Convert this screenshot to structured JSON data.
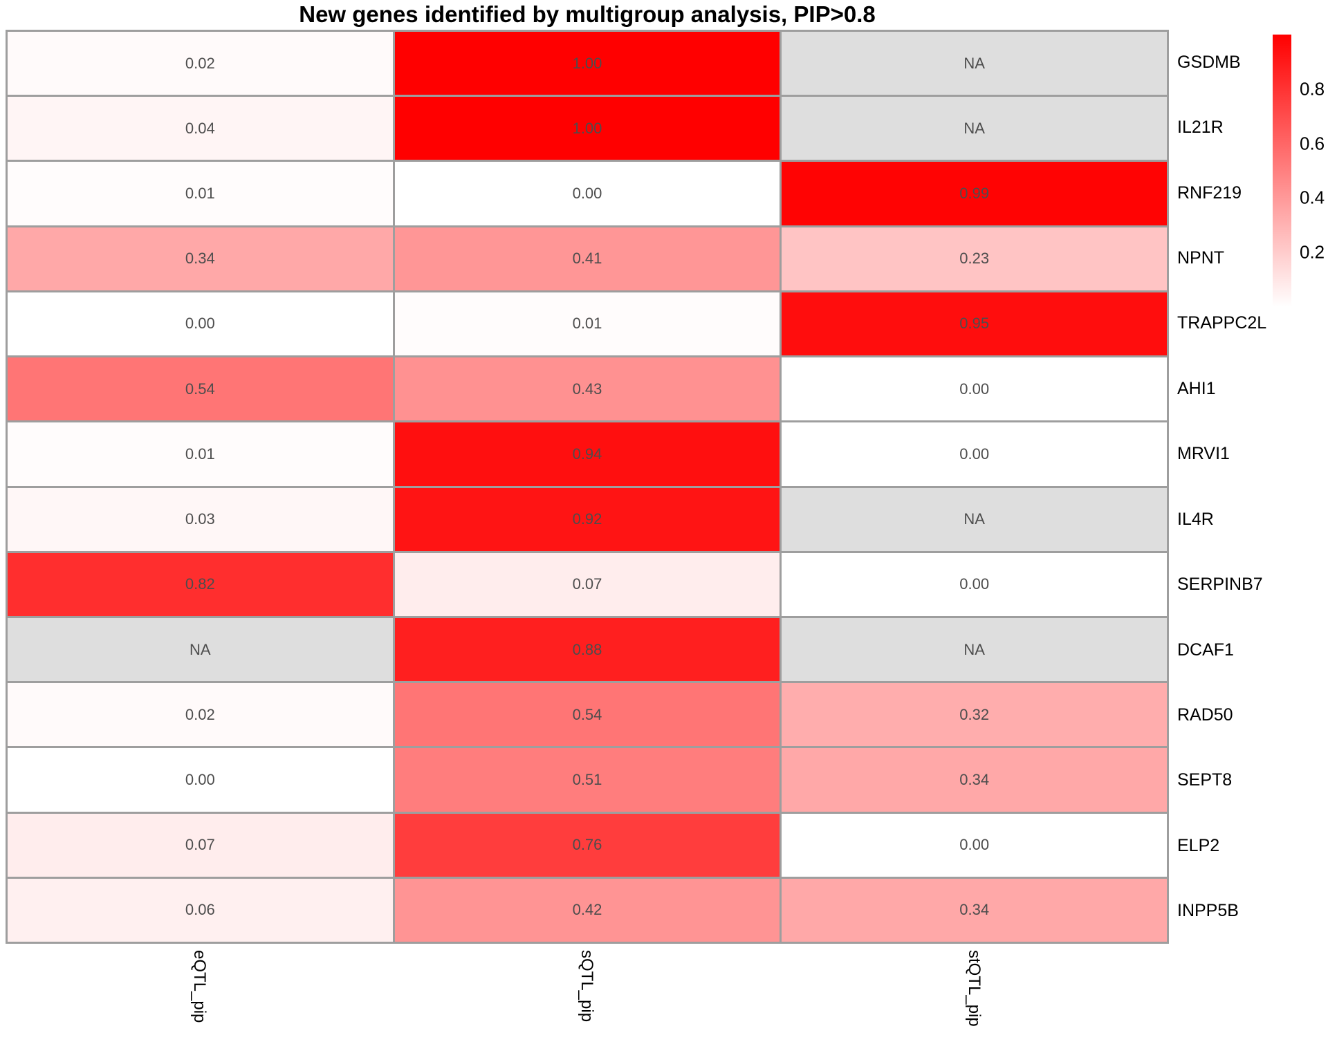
{
  "title": "New genes identified by multigroup analysis, PIP>0.8",
  "chart_data": {
    "type": "heatmap",
    "columns": [
      "eQTL_pip",
      "sQTL_pip",
      "stQTL_pip"
    ],
    "rows": [
      "GSDMB",
      "IL21R",
      "RNF219",
      "NPNT",
      "TRAPPC2L",
      "AHI1",
      "MRVI1",
      "IL4R",
      "SERPINB7",
      "DCAF1",
      "RAD50",
      "SEPT8",
      "ELP2",
      "INPP5B"
    ],
    "values": [
      [
        0.02,
        1.0,
        null
      ],
      [
        0.04,
        1.0,
        null
      ],
      [
        0.01,
        0.0,
        0.99
      ],
      [
        0.34,
        0.41,
        0.23
      ],
      [
        0.0,
        0.01,
        0.95
      ],
      [
        0.54,
        0.43,
        0.0
      ],
      [
        0.01,
        0.94,
        0.0
      ],
      [
        0.03,
        0.92,
        null
      ],
      [
        0.82,
        0.07,
        0.0
      ],
      [
        null,
        0.88,
        null
      ],
      [
        0.02,
        0.54,
        0.32
      ],
      [
        0.0,
        0.51,
        0.34
      ],
      [
        0.07,
        0.76,
        0.0
      ],
      [
        0.06,
        0.42,
        0.34
      ]
    ],
    "cell_labels": [
      [
        "0.02",
        "1.00",
        "NA"
      ],
      [
        "0.04",
        "1.00",
        "NA"
      ],
      [
        "0.01",
        "0.00",
        "0.99"
      ],
      [
        "0.34",
        "0.41",
        "0.23"
      ],
      [
        "0.00",
        "0.01",
        "0.95"
      ],
      [
        "0.54",
        "0.43",
        "0.00"
      ],
      [
        "0.01",
        "0.94",
        "0.00"
      ],
      [
        "0.03",
        "0.92",
        "NA"
      ],
      [
        "0.82",
        "0.07",
        "0.00"
      ],
      [
        "NA",
        "0.88",
        "NA"
      ],
      [
        "0.02",
        "0.54",
        "0.32"
      ],
      [
        "0.00",
        "0.51",
        "0.34"
      ],
      [
        "0.07",
        "0.76",
        "0.00"
      ],
      [
        "0.06",
        "0.42",
        "0.34"
      ]
    ],
    "colorscale": {
      "low": "#FFFFFF",
      "high": "#FF0000",
      "domain": [
        0,
        1
      ]
    },
    "na_color": "#DEDEDE",
    "grid_line_color": "#9E9E9E",
    "cell_text_color": "#4D4D4D",
    "legend": {
      "position": "right",
      "ticks": [
        "0.8",
        "0.6",
        "0.4",
        "0.2"
      ],
      "tick_values": [
        0.8,
        0.6,
        0.4,
        0.2
      ]
    }
  }
}
